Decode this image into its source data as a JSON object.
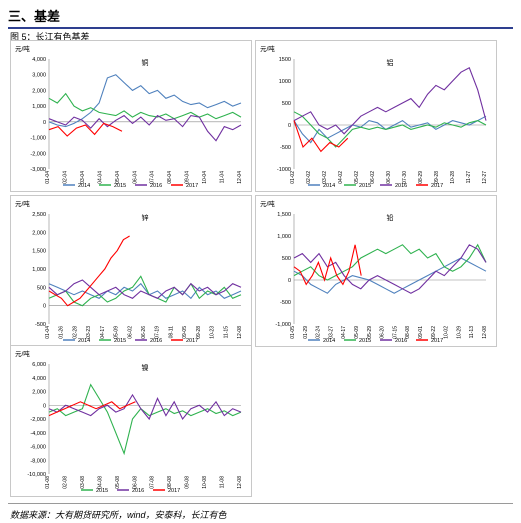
{
  "page": {
    "section_title": "三、基差",
    "figure_caption": "图 5：长江有色基差",
    "source": "数据来源：大有期货研究所，wind，安泰科，长江有色"
  },
  "chart_data": [
    {
      "id": "copper",
      "type": "line",
      "title": "铜",
      "unit_label": "元/吨",
      "ylim": [
        -3000,
        4000
      ],
      "yticks": [
        "4,000",
        "3,000",
        "2,000",
        "1,000",
        "0",
        "-1,000",
        "-2,000",
        "-3,000"
      ],
      "x_ticks": [
        "01-04",
        "02-04",
        "03-04",
        "04-04",
        "05-04",
        "06-04",
        "07-04",
        "08-04",
        "09-04",
        "10-04",
        "11-04",
        "12-04"
      ],
      "grid": false,
      "legend_position": "bottom",
      "series": [
        {
          "name": "2014",
          "color": "#4f81bd",
          "coverage": [
            0,
            1
          ],
          "values": [
            0,
            -200,
            -300,
            -100,
            200,
            600,
            1200,
            2800,
            3000,
            2500,
            2000,
            2300,
            1800,
            2000,
            1500,
            1700,
            1300,
            1100,
            1200,
            900,
            1100,
            1300,
            1000,
            1200
          ]
        },
        {
          "name": "2015",
          "color": "#2fb24f",
          "coverage": [
            0,
            1
          ],
          "values": [
            1500,
            1200,
            1800,
            1000,
            700,
            900,
            600,
            500,
            400,
            700,
            300,
            600,
            400,
            300,
            500,
            200,
            400,
            600,
            300,
            500,
            200,
            400,
            600,
            300
          ]
        },
        {
          "name": "2016",
          "color": "#7030a0",
          "coverage": [
            0,
            1
          ],
          "values": [
            200,
            0,
            -200,
            300,
            100,
            -400,
            200,
            -300,
            100,
            400,
            -100,
            300,
            -200,
            400,
            100,
            200,
            -300,
            400,
            300,
            -600,
            -1200,
            -300,
            -500,
            -200
          ]
        },
        {
          "name": "2017",
          "color": "#ff0000",
          "coverage": [
            0,
            0.38
          ],
          "values": [
            -500,
            -300,
            -900,
            -400,
            -200,
            -800,
            -100,
            -300,
            -600
          ]
        }
      ]
    },
    {
      "id": "aluminum",
      "type": "line",
      "title": "铝",
      "unit_label": "元/吨",
      "ylim": [
        -1000,
        1500
      ],
      "yticks": [
        "1500",
        "1000",
        "500",
        "0",
        "-500",
        "-1000"
      ],
      "x_ticks": [
        "01-02",
        "02-02",
        "03-02",
        "04-02",
        "05-02",
        "06-02",
        "06-30",
        "07-30",
        "08-29",
        "09-28",
        "10-28",
        "11-27",
        "12-27"
      ],
      "grid": false,
      "legend_position": "bottom",
      "series": [
        {
          "name": "2014",
          "color": "#4f81bd",
          "coverage": [
            0,
            1
          ],
          "values": [
            100,
            -200,
            -400,
            -100,
            -300,
            -200,
            -100,
            0,
            -50,
            100,
            50,
            -100,
            0,
            100,
            -50,
            0,
            50,
            -100,
            0,
            100,
            50,
            0,
            100,
            200
          ]
        },
        {
          "name": "2015",
          "color": "#2fb24f",
          "coverage": [
            0,
            1
          ],
          "values": [
            300,
            200,
            0,
            -200,
            -300,
            -500,
            -300,
            -100,
            -50,
            -100,
            -50,
            -100,
            -50,
            0,
            -100,
            -50,
            0,
            -50,
            50,
            0,
            -50,
            50,
            100,
            0
          ]
        },
        {
          "name": "2016",
          "color": "#7030a0",
          "coverage": [
            0,
            1
          ],
          "values": [
            100,
            200,
            300,
            0,
            -100,
            0,
            -200,
            0,
            200,
            300,
            400,
            300,
            400,
            500,
            600,
            400,
            700,
            900,
            800,
            1000,
            1200,
            1300,
            800,
            100
          ]
        },
        {
          "name": "2017",
          "color": "#ff0000",
          "coverage": [
            0,
            0.28
          ],
          "values": [
            100,
            -500,
            -300,
            -600,
            -400,
            -500,
            -300
          ]
        }
      ]
    },
    {
      "id": "zinc",
      "type": "line",
      "title": "锌",
      "unit_label": "元/吨",
      "ylim": [
        -500,
        2500
      ],
      "yticks": [
        "2,500",
        "2,000",
        "1,500",
        "1,000",
        "500",
        "0",
        "-500"
      ],
      "x_ticks": [
        "01-04",
        "01-26",
        "02-28",
        "03-23",
        "04-17",
        "05-09",
        "06-02",
        "06-26",
        "07-19",
        "08-11",
        "09-05",
        "09-28",
        "10-23",
        "11-15",
        "12-08"
      ],
      "grid": false,
      "legend_position": "bottom",
      "series": [
        {
          "name": "2014",
          "color": "#4f81bd",
          "coverage": [
            0,
            1
          ],
          "values": [
            600,
            500,
            400,
            300,
            400,
            300,
            200,
            400,
            300,
            500,
            400,
            600,
            300,
            400,
            200,
            300,
            400,
            200,
            500,
            300,
            400,
            200,
            300,
            400
          ]
        },
        {
          "name": "2015",
          "color": "#2fb24f",
          "coverage": [
            0,
            1
          ],
          "values": [
            200,
            300,
            400,
            100,
            0,
            200,
            300,
            100,
            200,
            400,
            500,
            800,
            300,
            200,
            100,
            500,
            300,
            600,
            200,
            400,
            300,
            500,
            200,
            300
          ]
        },
        {
          "name": "2016",
          "color": "#7030a0",
          "coverage": [
            0,
            1
          ],
          "values": [
            500,
            300,
            400,
            600,
            700,
            500,
            300,
            400,
            500,
            300,
            200,
            400,
            300,
            200,
            400,
            500,
            300,
            600,
            400,
            500,
            300,
            400,
            600,
            500
          ]
        },
        {
          "name": "2017",
          "color": "#ff0000",
          "coverage": [
            0,
            0.42
          ],
          "values": [
            400,
            300,
            200,
            0,
            100,
            200,
            400,
            600,
            800,
            1000,
            1300,
            1500,
            1800,
            1900
          ]
        }
      ]
    },
    {
      "id": "lead",
      "type": "line",
      "title": "铅",
      "unit_label": "元/吨",
      "ylim": [
        -1000,
        1500
      ],
      "yticks": [
        "1,500",
        "1,000",
        "500",
        "0",
        "-500",
        "-1,000"
      ],
      "x_ticks": [
        "01-05",
        "01-29",
        "02-24",
        "03-27",
        "04-17",
        "05-09",
        "05-29",
        "06-20",
        "07-15",
        "08-08",
        "09-01",
        "09-22",
        "10-02",
        "10-29",
        "11-13",
        "12-08"
      ],
      "grid": false,
      "legend_position": "bottom",
      "series": [
        {
          "name": "2014",
          "color": "#4f81bd",
          "coverage": [
            0,
            1
          ],
          "values": [
            200,
            100,
            -100,
            -200,
            -300,
            -100,
            0,
            100,
            50,
            0,
            -100,
            -200,
            -300,
            -200,
            -100,
            0,
            100,
            200,
            300,
            400,
            500,
            400,
            300,
            200
          ]
        },
        {
          "name": "2015",
          "color": "#2fb24f",
          "coverage": [
            0,
            1
          ],
          "values": [
            100,
            200,
            300,
            100,
            0,
            100,
            200,
            300,
            500,
            600,
            700,
            600,
            700,
            800,
            600,
            700,
            500,
            600,
            300,
            200,
            300,
            500,
            800,
            400
          ]
        },
        {
          "name": "2016",
          "color": "#7030a0",
          "coverage": [
            0,
            1
          ],
          "values": [
            500,
            600,
            400,
            600,
            300,
            400,
            100,
            -100,
            -200,
            0,
            100,
            0,
            -100,
            -200,
            -300,
            -200,
            0,
            200,
            100,
            300,
            500,
            800,
            700,
            400
          ]
        },
        {
          "name": "2017",
          "color": "#ff0000",
          "coverage": [
            0,
            0.35
          ],
          "values": [
            300,
            200,
            -100,
            100,
            400,
            0,
            500,
            100,
            -100,
            200,
            800,
            100
          ]
        }
      ]
    },
    {
      "id": "nickel",
      "type": "line",
      "title": "镍",
      "unit_label": "元/吨",
      "ylim": [
        -10000,
        6000
      ],
      "yticks": [
        "6,000",
        "4,000",
        "2,000",
        "0",
        "-2,000",
        "-4,000",
        "-6,000",
        "-8,000",
        "-10,000"
      ],
      "x_ticks": [
        "01-08",
        "02-08",
        "03-08",
        "04-08",
        "05-08",
        "06-08",
        "07-08",
        "08-08",
        "09-08",
        "10-08",
        "11-08",
        "12-08"
      ],
      "grid": false,
      "legend_position": "bottom",
      "series": [
        {
          "name": "2015",
          "color": "#2fb24f",
          "coverage": [
            0,
            1
          ],
          "values": [
            -1000,
            -500,
            -1500,
            -1000,
            -500,
            3000,
            1000,
            -1000,
            -4000,
            -7000,
            -2000,
            -500,
            -1500,
            -1000,
            -500,
            -1200,
            -800,
            -1500,
            -1000,
            -500,
            -1200,
            -800,
            -1500,
            -1000
          ]
        },
        {
          "name": "2016",
          "color": "#7030a0",
          "coverage": [
            0,
            1
          ],
          "values": [
            -500,
            -1000,
            0,
            -500,
            -1000,
            -1500,
            -500,
            0,
            -1000,
            -500,
            1500,
            -500,
            -2000,
            1000,
            -1500,
            500,
            -2000,
            -500,
            0,
            -1000,
            500,
            -1500,
            -500,
            -1000
          ]
        },
        {
          "name": "2017",
          "color": "#ff0000",
          "coverage": [
            0,
            0.45
          ],
          "values": [
            -1500,
            -1000,
            -500,
            0,
            500,
            0,
            -500,
            0,
            500,
            -500,
            0,
            500
          ]
        }
      ]
    }
  ]
}
